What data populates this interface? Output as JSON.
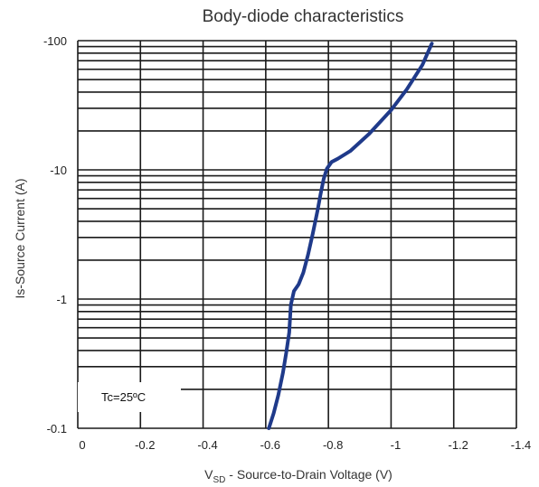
{
  "chart_data": {
    "type": "line",
    "title": "Body-diode characteristics",
    "xlabel_main": "V",
    "xlabel_sub": "SD",
    "xlabel_rest": " - Source-to-Drain Voltage (V)",
    "ylabel": "Is-Source Current (A)",
    "xlim": [
      0,
      -1.4
    ],
    "ylim": [
      -0.1,
      -100
    ],
    "yscale": "log",
    "grid": true,
    "x_ticks": [
      "0",
      "-0.2",
      "-0.4",
      "-0.6",
      "-0.8",
      "-1",
      "-1.2",
      "-1.4"
    ],
    "y_ticks": [
      "-100",
      "-10",
      "-1",
      "-0.1"
    ],
    "annotation": "Tc=25ºC",
    "line_color": "#1f3a8a",
    "series": [
      {
        "x": [
          -0.61,
          -0.625,
          -0.64,
          -0.655,
          -0.665,
          -0.675,
          -0.68,
          -0.69,
          -0.705,
          -0.72,
          -0.735,
          -0.75,
          -0.765,
          -0.775,
          -0.785,
          -0.795,
          -0.81,
          -0.83,
          -0.87,
          -0.93,
          -1.0,
          -1.05,
          -1.1,
          -1.13
        ],
        "y": [
          -0.1,
          -0.13,
          -0.18,
          -0.27,
          -0.38,
          -0.55,
          -0.9,
          -1.15,
          -1.3,
          -1.6,
          -2.2,
          -3.2,
          -4.8,
          -6.5,
          -8.5,
          -10.2,
          -11.5,
          -12.2,
          -14,
          -19,
          -29,
          -42,
          -65,
          -95
        ]
      }
    ]
  }
}
